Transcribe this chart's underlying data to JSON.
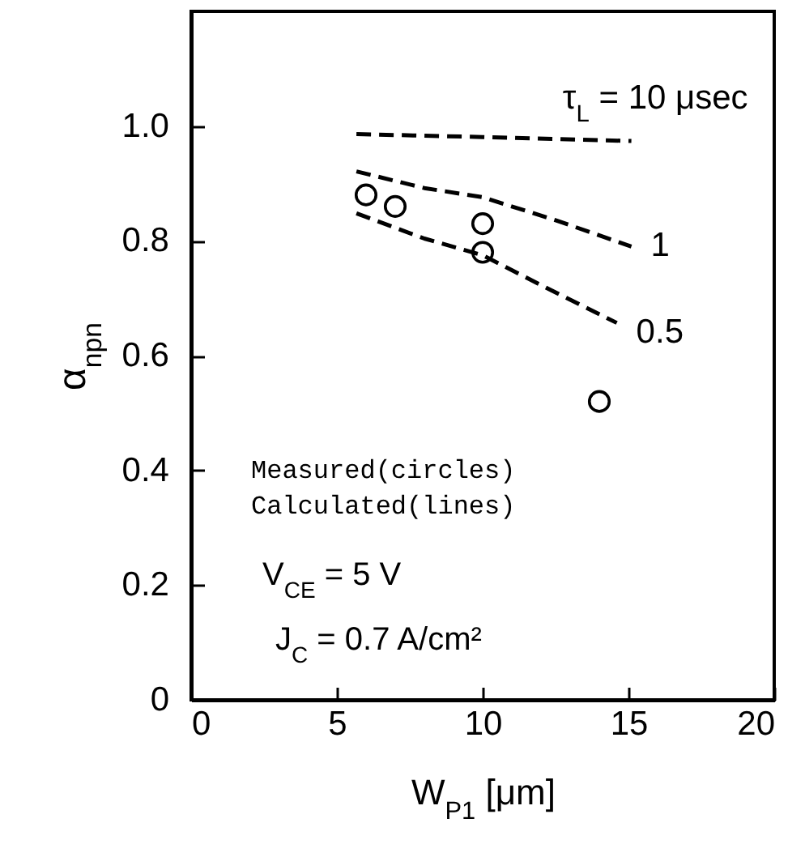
{
  "chart_data": {
    "type": "line",
    "xlabel": "W$_{P1}$ [μm]",
    "ylabel": "α$_{npn}$",
    "xlim": [
      0,
      20
    ],
    "xticks": [
      0,
      5,
      10,
      15,
      20
    ],
    "ylim": [
      0,
      1.2
    ],
    "yticks": [
      0,
      0.2,
      0.4,
      0.6,
      {
        "value": 1,
        "label": "1.0"
      },
      0.8
    ],
    "grid": false,
    "line_style": "dashed",
    "annotations": [
      "Measured(circles)",
      "Calculated(lines)",
      "V$_{CE}$ = 5 V",
      "J$_{C}$ = 0.7 A/cm²"
    ],
    "series": [
      {
        "name": "τ$_{L}$ = 10 μsec",
        "color": "#000000",
        "x": [
          5.67,
          10,
          15.1
        ],
        "values": [
          0.986,
          0.981,
          0.974
        ]
      },
      {
        "name": "1",
        "color": "#000000",
        "x": [
          5.67,
          8,
          10,
          12.5,
          15.1
        ],
        "values": [
          0.921,
          0.892,
          0.876,
          0.836,
          0.79
        ]
      },
      {
        "name": "0.5",
        "color": "#000000",
        "x": [
          5.67,
          8,
          10,
          12.5,
          14.6
        ],
        "values": [
          0.848,
          0.804,
          0.775,
          0.71,
          0.657
        ]
      },
      {
        "type": "scatter",
        "marker": "circle",
        "color": "#000000",
        "x": [
          6,
          7,
          10,
          10,
          14
        ],
        "values": [
          0.88,
          0.86,
          0.83,
          0.78,
          0.52
        ]
      }
    ]
  }
}
